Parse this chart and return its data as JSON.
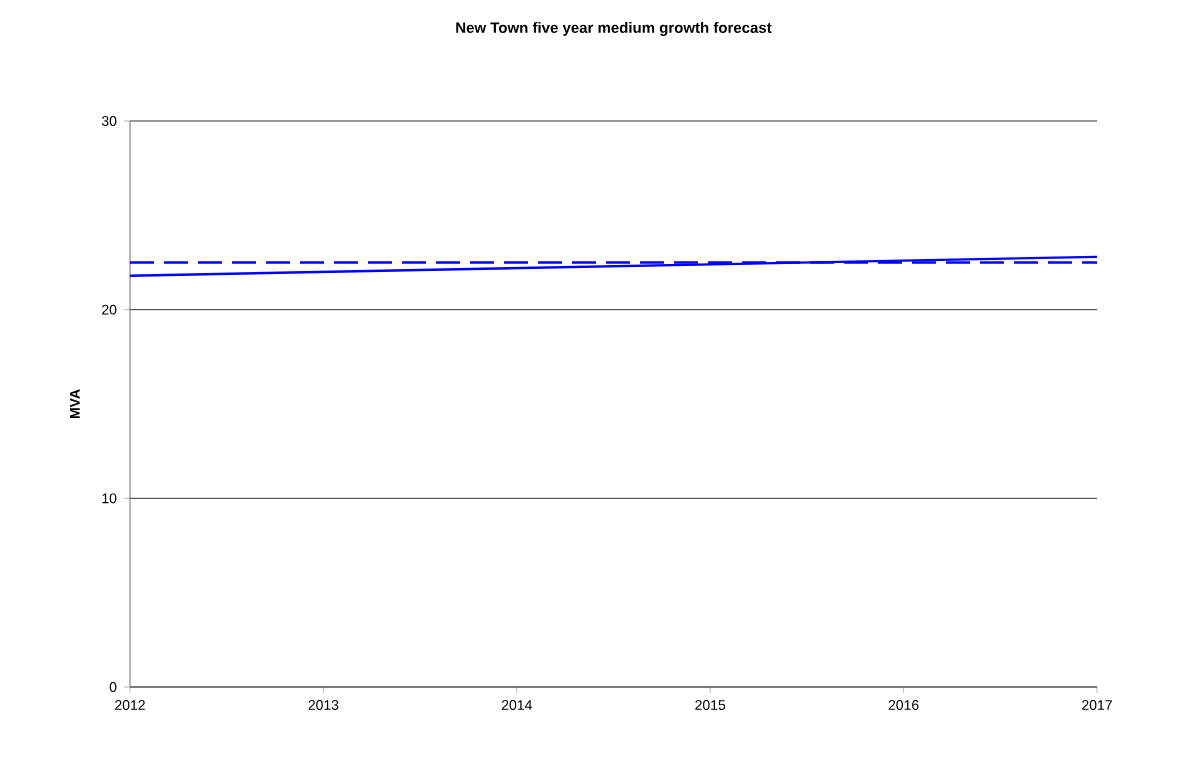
{
  "chart_data": {
    "type": "line",
    "title": "New Town five year medium growth forecast",
    "ylabel": "MVA",
    "x": [
      2012,
      2013,
      2014,
      2015,
      2016,
      2017
    ],
    "series": [
      {
        "color": "#0000ff",
        "line_style": "solid",
        "values": [
          21.8,
          22.0,
          22.2,
          22.4,
          22.6,
          22.8
        ]
      },
      {
        "color": "#0000ff",
        "line_style": "dashed",
        "values": [
          22.5,
          22.5,
          22.5,
          22.5,
          22.5,
          22.5
        ]
      }
    ],
    "xlim": [
      2012,
      2017
    ],
    "xticks": [
      2012,
      2013,
      2014,
      2015,
      2016,
      2017
    ],
    "ylim": [
      0,
      30
    ],
    "yticks": [
      0,
      10,
      20,
      30
    ],
    "grid": "y",
    "marker": "none"
  }
}
